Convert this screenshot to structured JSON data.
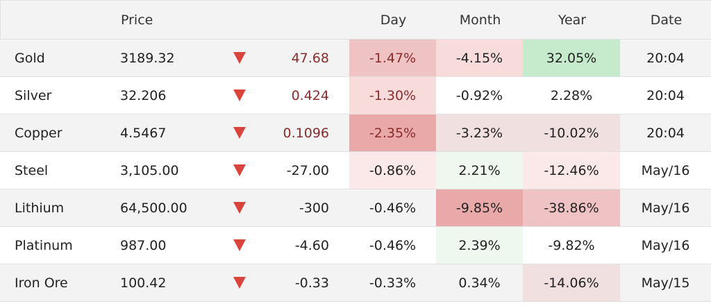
{
  "headers": {
    "price": "Price",
    "day": "Day",
    "month": "Month",
    "year": "Year",
    "date": "Date"
  },
  "direction_icon": "triangle-down-icon",
  "colors": {
    "down_arrow": "#d9443c",
    "negative_strong": "#e9a9a9",
    "negative_mid": "#efc3c3",
    "negative_light": "#f8dcdc",
    "positive_strong": "#c5ebcc",
    "positive_light": "#eef8ef"
  },
  "rows": [
    {
      "name": "Gold",
      "price": "3189.32",
      "change": "47.68",
      "day": "-1.47%",
      "month": "-4.15%",
      "year": "32.05%",
      "date": "20:04"
    },
    {
      "name": "Silver",
      "price": "32.206",
      "change": "0.424",
      "day": "-1.30%",
      "month": "-0.92%",
      "year": "2.28%",
      "date": "20:04"
    },
    {
      "name": "Copper",
      "price": "4.5467",
      "change": "0.1096",
      "day": "-2.35%",
      "month": "-3.23%",
      "year": "-10.02%",
      "date": "20:04"
    },
    {
      "name": "Steel",
      "price": "3,105.00",
      "change": "-27.00",
      "day": "-0.86%",
      "month": "2.21%",
      "year": "-12.46%",
      "date": "May/16"
    },
    {
      "name": "Lithium",
      "price": "64,500.00",
      "change": "-300",
      "day": "-0.46%",
      "month": "-9.85%",
      "year": "-38.86%",
      "date": "May/16"
    },
    {
      "name": "Platinum",
      "price": "987.00",
      "change": "-4.60",
      "day": "-0.46%",
      "month": "2.39%",
      "year": "-9.82%",
      "date": "May/16"
    },
    {
      "name": "Iron Ore",
      "price": "100.42",
      "change": "-0.33",
      "day": "-0.33%",
      "month": "0.34%",
      "year": "-14.06%",
      "date": "May/15"
    }
  ]
}
